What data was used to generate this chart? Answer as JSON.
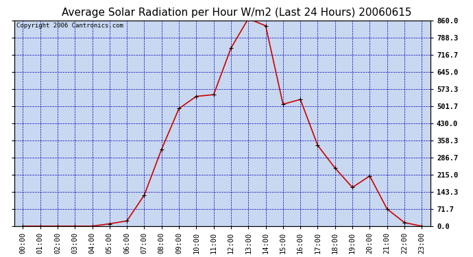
{
  "title": "Average Solar Radiation per Hour W/m2 (Last 24 Hours) 20060615",
  "copyright": "Copyright 2006 Cantronics.com",
  "hours": [
    "00:00",
    "01:00",
    "02:00",
    "03:00",
    "04:00",
    "05:00",
    "06:00",
    "07:00",
    "08:00",
    "09:00",
    "10:00",
    "11:00",
    "12:00",
    "13:00",
    "14:00",
    "15:00",
    "16:00",
    "17:00",
    "18:00",
    "19:00",
    "20:00",
    "21:00",
    "22:00",
    "23:00"
  ],
  "values": [
    0.0,
    0.0,
    0.0,
    0.0,
    0.0,
    10.0,
    22.0,
    130.0,
    322.0,
    492.0,
    543.0,
    550.0,
    745.0,
    868.0,
    838.0,
    510.0,
    530.0,
    338.0,
    243.0,
    162.0,
    210.0,
    72.0,
    15.0,
    0.0
  ],
  "yticks": [
    0.0,
    71.7,
    143.3,
    215.0,
    286.7,
    358.3,
    430.0,
    501.7,
    573.3,
    645.0,
    716.7,
    788.3,
    860.0
  ],
  "ymax": 860.0,
  "ymin": 0.0,
  "line_color": "#cc0000",
  "bg_color": "#c8d8f0",
  "grid_color": "#0000bb",
  "title_fontsize": 11,
  "copyright_fontsize": 6.5,
  "tick_label_fontsize": 7.5
}
